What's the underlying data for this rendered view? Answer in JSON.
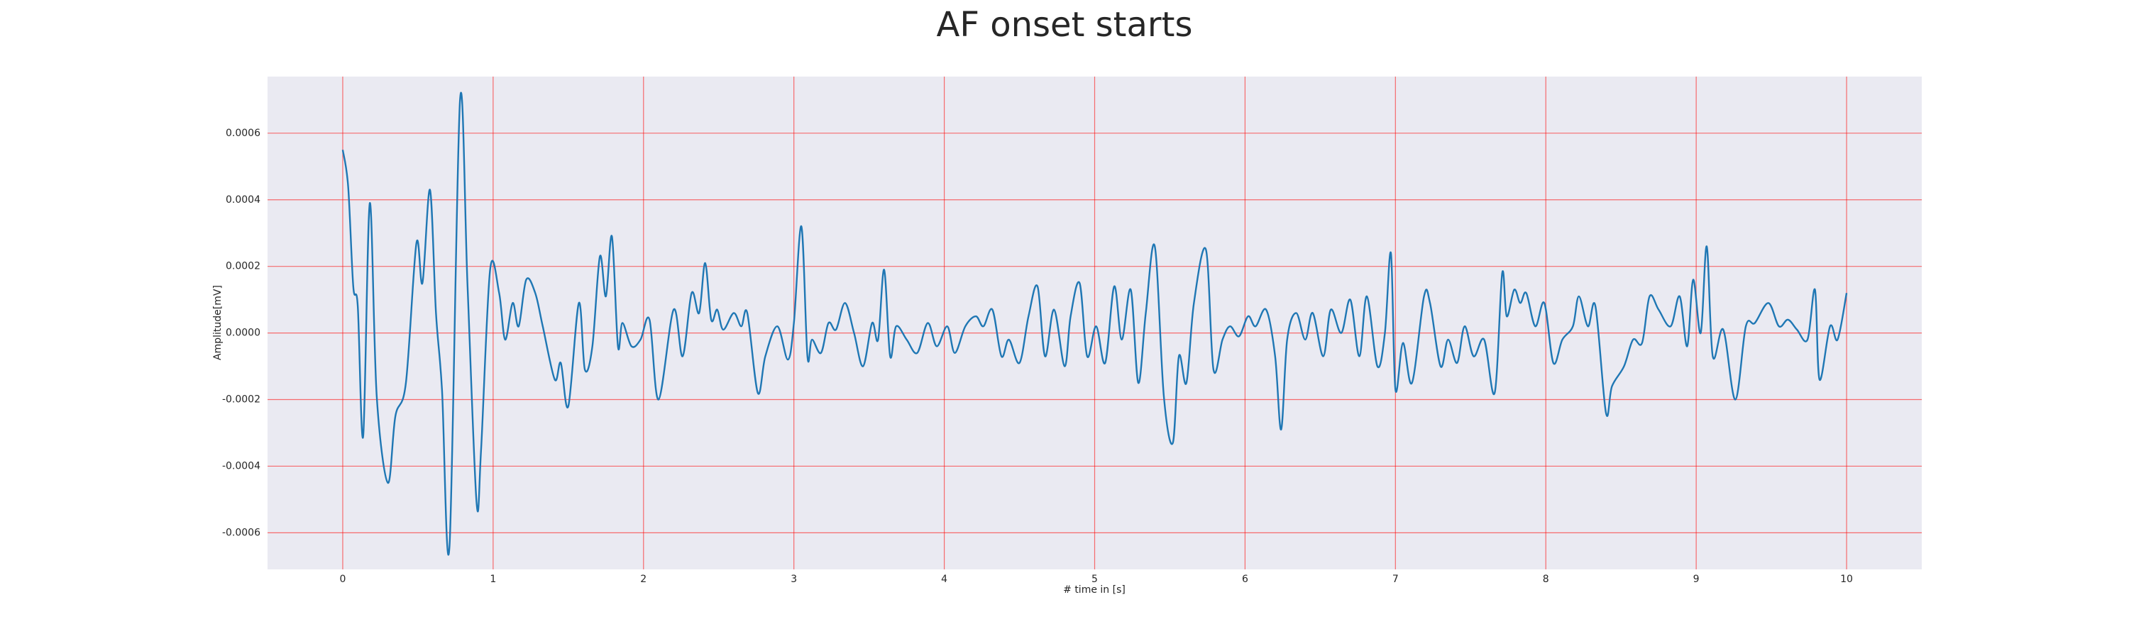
{
  "chart_data": {
    "type": "line",
    "title": "AF onset starts",
    "xlabel": "# time in [s]",
    "ylabel": "Amplitude[mV]",
    "x": [
      0,
      0.036,
      0.07,
      0.1,
      0.136,
      0.18,
      0.226,
      0.3,
      0.35,
      0.42,
      0.49,
      0.53,
      0.58,
      0.62,
      0.66,
      0.71,
      0.78,
      0.83,
      0.89,
      0.92,
      0.98,
      1.04,
      1.08,
      1.13,
      1.17,
      1.22,
      1.28,
      1.33,
      1.41,
      1.45,
      1.5,
      1.57,
      1.61,
      1.66,
      1.71,
      1.75,
      1.79,
      1.83,
      1.86,
      1.92,
      1.98,
      2.04,
      2.1,
      2.2,
      2.26,
      2.32,
      2.37,
      2.41,
      2.45,
      2.49,
      2.53,
      2.6,
      2.65,
      2.69,
      2.76,
      2.81,
      2.89,
      2.96,
      3.0,
      3.05,
      3.09,
      3.12,
      3.18,
      3.23,
      3.28,
      3.34,
      3.4,
      3.46,
      3.52,
      3.56,
      3.6,
      3.64,
      3.68,
      3.75,
      3.82,
      3.89,
      3.95,
      4.02,
      4.07,
      4.14,
      4.21,
      4.26,
      4.32,
      4.38,
      4.43,
      4.5,
      4.56,
      4.62,
      4.67,
      4.73,
      4.8,
      4.84,
      4.9,
      4.95,
      5.01,
      5.07,
      5.13,
      5.18,
      5.24,
      5.29,
      5.34,
      5.4,
      5.46,
      5.52,
      5.56,
      5.61,
      5.66,
      5.74,
      5.79,
      5.85,
      5.9,
      5.96,
      6.02,
      6.07,
      6.14,
      6.2,
      6.24,
      6.28,
      6.34,
      6.4,
      6.45,
      6.52,
      6.57,
      6.64,
      6.7,
      6.76,
      6.81,
      6.88,
      6.93,
      6.97,
      7.0,
      7.05,
      7.11,
      7.19,
      7.23,
      7.3,
      7.35,
      7.41,
      7.46,
      7.52,
      7.59,
      7.66,
      7.71,
      7.74,
      7.79,
      7.83,
      7.87,
      7.93,
      7.99,
      8.05,
      8.11,
      8.18,
      8.22,
      8.28,
      8.33,
      8.4,
      8.44,
      8.52,
      8.58,
      8.64,
      8.69,
      8.75,
      8.83,
      8.89,
      8.94,
      8.98,
      9.03,
      9.07,
      9.11,
      9.18,
      9.26,
      9.33,
      9.39,
      9.48,
      9.55,
      9.61,
      9.67,
      9.74,
      9.79,
      9.82,
      9.89,
      9.94,
      10.0
    ],
    "values": [
      0.00055,
      0.00044,
      0.00014,
      8e-05,
      -0.00031,
      0.00039,
      -0.00019,
      -0.00045,
      -0.00025,
      -0.00015,
      0.00027,
      0.00015,
      0.00043,
      6e-05,
      -0.00017,
      -0.00064,
      0.0007,
      0.00014,
      -0.00051,
      -0.00035,
      0.00019,
      0.00012,
      -2e-05,
      9e-05,
      2e-05,
      0.00016,
      0.00012,
      2e-05,
      -0.00014,
      -9e-05,
      -0.00022,
      9e-05,
      -0.00011,
      -4e-05,
      0.00023,
      0.00011,
      0.00029,
      -4e-05,
      3e-05,
      -4e-05,
      -2e-05,
      4e-05,
      -0.0002,
      7e-05,
      -7e-05,
      0.00012,
      6e-05,
      0.00021,
      4e-05,
      7e-05,
      1e-05,
      6e-05,
      2e-05,
      6e-05,
      -0.00018,
      -7e-05,
      2e-05,
      -8e-05,
      3e-05,
      0.00032,
      -7e-05,
      -2e-05,
      -6e-05,
      3e-05,
      1e-05,
      9e-05,
      0,
      -0.0001,
      3e-05,
      -2e-05,
      0.00019,
      -7e-05,
      2e-05,
      -2e-05,
      -6e-05,
      3e-05,
      -4e-05,
      2e-05,
      -6e-05,
      2e-05,
      5e-05,
      2e-05,
      7e-05,
      -7e-05,
      -2e-05,
      -9e-05,
      5e-05,
      0.00014,
      -7e-05,
      7e-05,
      -0.0001,
      5e-05,
      0.00015,
      -7e-05,
      2e-05,
      -9e-05,
      0.00014,
      -2e-05,
      0.00013,
      -0.00015,
      6e-05,
      0.00026,
      -0.00019,
      -0.00033,
      -7e-05,
      -0.00015,
      9e-05,
      0.00025,
      -0.00011,
      -2e-05,
      2e-05,
      -1e-05,
      5e-05,
      2e-05,
      7e-05,
      -7e-05,
      -0.00029,
      -2e-05,
      6e-05,
      -2e-05,
      6e-05,
      -7e-05,
      7e-05,
      0,
      0.0001,
      -7e-05,
      0.00011,
      -0.0001,
      0,
      0.00024,
      -0.00017,
      -3e-05,
      -0.00015,
      0.00011,
      9e-05,
      -0.0001,
      -2e-05,
      -9e-05,
      2e-05,
      -7e-05,
      -2e-05,
      -0.00018,
      0.00018,
      5e-05,
      0.00013,
      9e-05,
      0.00012,
      2e-05,
      9e-05,
      -9e-05,
      -2e-05,
      2e-05,
      0.00011,
      2e-05,
      8e-05,
      -0.00024,
      -0.00016,
      -0.0001,
      -2e-05,
      -3e-05,
      0.00011,
      7e-05,
      2e-05,
      0.00011,
      -4e-05,
      0.00016,
      0,
      0.00026,
      -7e-05,
      1e-05,
      -0.0002,
      2e-05,
      3e-05,
      9e-05,
      2e-05,
      4e-05,
      1e-05,
      -2e-05,
      0.00013,
      -0.00014,
      2e-05,
      -2e-05,
      0.00012
    ],
    "color": "#1f77b4",
    "xlim": [
      -0.5,
      10.5
    ],
    "ylim": [
      -0.00071,
      0.00077
    ],
    "xticks": [
      0,
      1,
      2,
      3,
      4,
      5,
      6,
      7,
      8,
      9,
      10
    ],
    "yticks": [
      {
        "value": -0.0006,
        "label": "-0.0006"
      },
      {
        "value": -0.0004,
        "label": "-0.0004"
      },
      {
        "value": -0.0002,
        "label": "-0.0002"
      },
      {
        "value": 0,
        "label": "0.0000"
      },
      {
        "value": 0.0002,
        "label": "0.0002"
      },
      {
        "value": 0.0004,
        "label": "0.0004"
      },
      {
        "value": 0.0006,
        "label": "0.0006"
      }
    ],
    "grid": true,
    "grid_color": "#ff0000",
    "background": "#eaeaf2"
  }
}
